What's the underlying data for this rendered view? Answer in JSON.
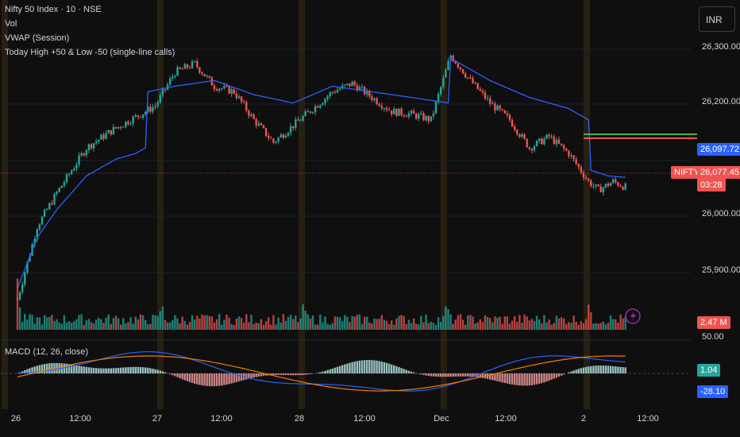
{
  "header": {
    "title": "Nifty 50 Index · 10 · NSE",
    "indicators": [
      "Vol",
      "VWAP (Session)",
      "Today High +50 & Low -50 (single-line calls)"
    ],
    "currency": "INR"
  },
  "macd_legend": "MACD (12, 26, close)",
  "price_axis": {
    "labels": [
      "26,300.00",
      "26,200.00",
      "26,100.00",
      "26,000.00",
      "25,900.00",
      "50.00"
    ]
  },
  "tags": {
    "vwap": "26,097.72",
    "symbol": "NIFTY",
    "last_price": "26,077.45",
    "countdown": "03:28",
    "volume": "2.47 M",
    "macd_hist": "1.04",
    "macd_line": "-28.10"
  },
  "time_axis": [
    "26",
    "12:00",
    "27",
    "12:00",
    "28",
    "12:00",
    "Dec",
    "12:00",
    "2",
    "12:00"
  ],
  "colors": {
    "up": "#26a69a",
    "down": "#ef5350",
    "vwap": "#2962ff",
    "macd": "#2962ff",
    "signal": "#f57c00",
    "high_line": "#4caf50",
    "low_line": "#ef5350",
    "session_band": "#3a2f14"
  },
  "chart_data": {
    "type": "candlestick",
    "title": "Nifty 50 Index · 10 · NSE",
    "ylim": [
      25830,
      26340
    ],
    "x": [
      "26",
      "12:00",
      "27",
      "12:00",
      "28",
      "12:00",
      "Dec",
      "12:00",
      "2",
      "12:00"
    ],
    "approx_close_path": [
      [
        0,
        25880
      ],
      [
        8,
        26010
      ],
      [
        16,
        26070
      ],
      [
        28,
        26150
      ],
      [
        38,
        26180
      ],
      [
        48,
        26205
      ],
      [
        56,
        26225
      ],
      [
        64,
        26285
      ],
      [
        72,
        26300
      ],
      [
        80,
        26260
      ],
      [
        88,
        26250
      ],
      [
        96,
        26200
      ],
      [
        104,
        26160
      ],
      [
        112,
        26190
      ],
      [
        120,
        26220
      ],
      [
        128,
        26250
      ],
      [
        136,
        26265
      ],
      [
        144,
        26240
      ],
      [
        152,
        26215
      ],
      [
        160,
        26210
      ],
      [
        168,
        26200
      ],
      [
        176,
        26315
      ],
      [
        184,
        26270
      ],
      [
        192,
        26230
      ],
      [
        200,
        26200
      ],
      [
        208,
        26150
      ],
      [
        216,
        26170
      ],
      [
        224,
        26140
      ],
      [
        232,
        26090
      ],
      [
        236,
        26075
      ],
      [
        242,
        26090
      ],
      [
        248,
        26078
      ]
    ],
    "vwap_approx": [
      [
        0,
        25900
      ],
      [
        8,
        25990
      ],
      [
        16,
        26040
      ],
      [
        28,
        26100
      ],
      [
        40,
        26130
      ],
      [
        48,
        26140
      ],
      [
        52,
        26150
      ],
      [
        53,
        26250
      ],
      [
        64,
        26260
      ],
      [
        80,
        26270
      ],
      [
        96,
        26245
      ],
      [
        112,
        26230
      ],
      [
        128,
        26260
      ],
      [
        144,
        26250
      ],
      [
        160,
        26240
      ],
      [
        175,
        26230
      ],
      [
        176,
        26310
      ],
      [
        192,
        26270
      ],
      [
        208,
        26240
      ],
      [
        224,
        26220
      ],
      [
        232,
        26200
      ],
      [
        233,
        26110
      ],
      [
        240,
        26100
      ],
      [
        248,
        26097
      ]
    ],
    "today_high_line": 26115,
    "today_low_line": 26110,
    "last_price": 26077.45,
    "vwap_last": 26097.72,
    "volume_last": "2.47 M",
    "macd": {
      "fast": 12,
      "slow": 26,
      "source": "close",
      "hist_last": 1.04,
      "macd_last": -28.1
    }
  }
}
